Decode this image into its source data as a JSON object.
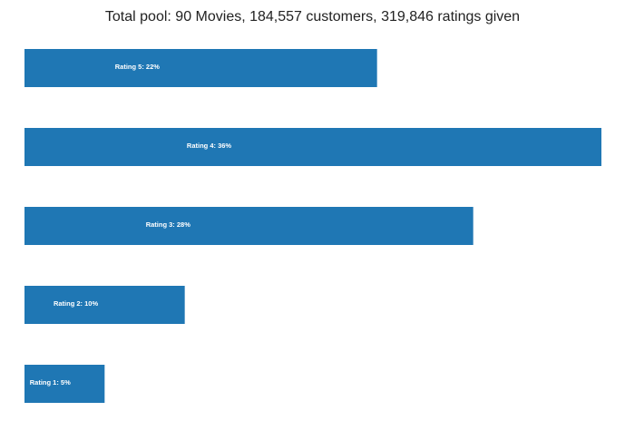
{
  "chart_data": {
    "type": "bar",
    "orientation": "horizontal",
    "title": "Total pool: 90 Movies, 184,557 customers, 319,846 ratings given",
    "xlabel": "",
    "ylabel": "",
    "grid": false,
    "legend": "none",
    "bar_color": "#1f77b4",
    "label_color": "#ffffff",
    "categories": [
      "Rating 5",
      "Rating 4",
      "Rating 3",
      "Rating 2",
      "Rating 1"
    ],
    "values": [
      22,
      36,
      28,
      10,
      5
    ],
    "labels": [
      "Rating 5: 22%",
      "Rating 4: 36%",
      "Rating 3: 28%",
      "Rating 2: 10%",
      "Rating 1: 5%"
    ],
    "xlim": [
      0,
      36
    ]
  }
}
